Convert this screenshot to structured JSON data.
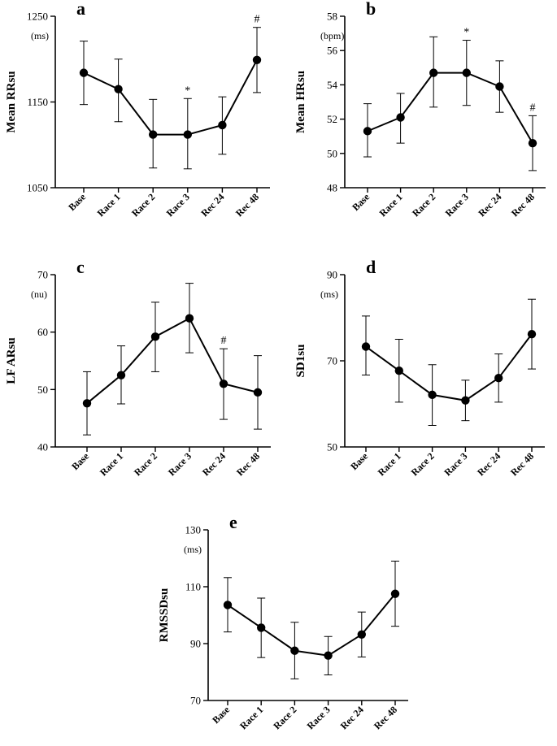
{
  "figure": {
    "categories": [
      "Base",
      "Race 1",
      "Race 2",
      "Race 3",
      "Rec 24",
      "Rec 48"
    ]
  },
  "chart_data": [
    {
      "type": "line",
      "panel": "a",
      "ylabel": "Mean RRsu",
      "unit": "(ms)",
      "categories": [
        "Base",
        "Race 1",
        "Race 2",
        "Race 3",
        "Rec 24",
        "Rec 48"
      ],
      "values": [
        1184,
        1165,
        1112,
        1112,
        1123,
        1199
      ],
      "err_upper": [
        1221,
        1200,
        1153,
        1154,
        1156,
        1237
      ],
      "err_lower": [
        1147,
        1127,
        1073,
        1072,
        1089,
        1161
      ],
      "ylim": [
        1050,
        1250
      ],
      "yticks": [
        1050,
        1150,
        1250
      ],
      "annotations": [
        {
          "index": 3,
          "text": "*"
        },
        {
          "index": 5,
          "text": "#"
        }
      ]
    },
    {
      "type": "line",
      "panel": "b",
      "ylabel": "Mean HRsu",
      "unit": "(bpm)",
      "categories": [
        "Base",
        "Race 1",
        "Race 2",
        "Race 3",
        "Rec 24",
        "Rec 48"
      ],
      "values": [
        51.3,
        52.1,
        54.7,
        54.7,
        53.9,
        50.6
      ],
      "err_upper": [
        52.9,
        53.5,
        56.8,
        56.6,
        55.4,
        52.2
      ],
      "err_lower": [
        49.8,
        50.6,
        52.7,
        52.8,
        52.4,
        49.0
      ],
      "ylim": [
        48,
        58
      ],
      "yticks": [
        48,
        50,
        52,
        54,
        56,
        58
      ],
      "annotations": [
        {
          "index": 3,
          "text": "*"
        },
        {
          "index": 5,
          "text": "#"
        }
      ]
    },
    {
      "type": "line",
      "panel": "c",
      "ylabel": "LF ARsu",
      "unit": "(nu)",
      "categories": [
        "Base",
        "Race 1",
        "Race 2",
        "Race 3",
        "Rec 24",
        "Rec 48"
      ],
      "values": [
        47.6,
        52.5,
        59.2,
        62.4,
        51.0,
        49.5
      ],
      "err_upper": [
        53.1,
        57.6,
        65.2,
        68.5,
        57.1,
        55.9
      ],
      "err_lower": [
        42.1,
        47.5,
        53.1,
        56.4,
        44.8,
        43.1
      ],
      "ylim": [
        40,
        70
      ],
      "yticks": [
        40,
        50,
        60,
        70
      ],
      "annotations": [
        {
          "index": 4,
          "text": "#"
        }
      ]
    },
    {
      "type": "line",
      "panel": "d",
      "ylabel": "SD1su",
      "unit": "(ms)",
      "categories": [
        "Base",
        "Race 1",
        "Race 2",
        "Race 3",
        "Rec 24",
        "Rec 48"
      ],
      "values": [
        73.3,
        67.7,
        62.1,
        60.8,
        66.0,
        76.2
      ],
      "err_upper": [
        80.4,
        75.0,
        69.1,
        65.5,
        71.6,
        84.3
      ],
      "err_lower": [
        66.7,
        60.4,
        55.0,
        56.1,
        60.4,
        68.1
      ],
      "ylim": [
        50,
        90
      ],
      "yticks": [
        50,
        70,
        90
      ],
      "annotations": []
    },
    {
      "type": "line",
      "panel": "e",
      "ylabel": "RMSSDsu",
      "unit": "(ms)",
      "categories": [
        "Base",
        "Race 1",
        "Race 2",
        "Race 3",
        "Rec 24",
        "Rec 48"
      ],
      "values": [
        103.6,
        95.6,
        87.5,
        85.8,
        93.2,
        107.5
      ],
      "err_upper": [
        113.2,
        106.0,
        97.5,
        92.5,
        101.1,
        119.0
      ],
      "err_lower": [
        94.1,
        85.1,
        77.6,
        79.0,
        85.3,
        96.1
      ],
      "ylim": [
        70,
        130
      ],
      "yticks": [
        70,
        90,
        110,
        130
      ],
      "annotations": []
    }
  ]
}
